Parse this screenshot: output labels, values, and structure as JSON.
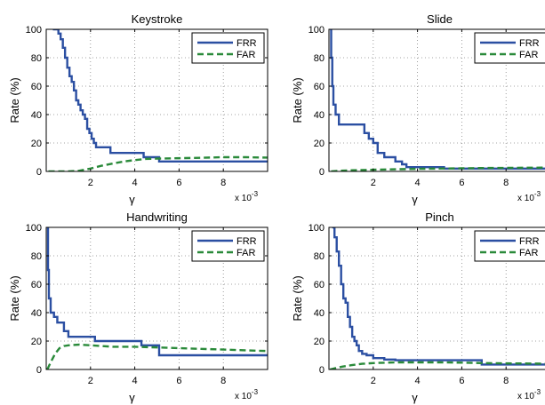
{
  "chart_data": [
    {
      "type": "line",
      "title": "Keystroke",
      "xlabel": "γ",
      "ylabel": "Rate (%)",
      "x_multiplier_label": "x 10",
      "x_multiplier_exp": "-3",
      "xlim": [
        0,
        10
      ],
      "ylim": [
        0,
        100
      ],
      "xticks": [
        2,
        4,
        6,
        8
      ],
      "yticks": [
        0,
        20,
        40,
        60,
        80,
        100
      ],
      "grid": true,
      "legend_position": "top-right",
      "series": [
        {
          "name": "FRR",
          "style": "solid",
          "color": "#2b4fa2",
          "x": [
            0.3,
            0.55,
            0.55,
            0.65,
            0.65,
            0.75,
            0.75,
            0.85,
            0.85,
            0.95,
            0.95,
            1.05,
            1.05,
            1.15,
            1.15,
            1.25,
            1.25,
            1.35,
            1.35,
            1.45,
            1.45,
            1.55,
            1.55,
            1.65,
            1.65,
            1.75,
            1.75,
            1.85,
            1.85,
            1.95,
            1.95,
            2.05,
            2.05,
            2.15,
            2.15,
            2.25,
            2.25,
            2.45,
            2.45,
            2.9,
            2.9,
            3.8,
            3.8,
            4.4,
            4.4,
            5.1,
            5.1,
            10
          ],
          "y": [
            100,
            100,
            97,
            97,
            93,
            93,
            87,
            87,
            80,
            80,
            73,
            73,
            67,
            67,
            63,
            63,
            57,
            57,
            50,
            50,
            47,
            47,
            43,
            43,
            40,
            40,
            37,
            37,
            30,
            30,
            27,
            27,
            23,
            23,
            20,
            20,
            17,
            17,
            17,
            17,
            13,
            13,
            13,
            13,
            10,
            10,
            7,
            7
          ]
        },
        {
          "name": "FAR",
          "style": "dashed",
          "color": "#2a8a3a",
          "x": [
            0.1,
            1.0,
            1.5,
            2.0,
            2.5,
            3.0,
            3.5,
            4.0,
            4.5,
            5.0,
            6.0,
            7.0,
            8.0,
            9.0,
            10.0
          ],
          "y": [
            0,
            0,
            0.5,
            2,
            4,
            5.5,
            7,
            8,
            8.8,
            9,
            9.3,
            9.6,
            10,
            10,
            9.7
          ]
        }
      ]
    },
    {
      "type": "line",
      "title": "Slide",
      "xlabel": "γ",
      "ylabel": "Rate (%)",
      "x_multiplier_label": "x 10",
      "x_multiplier_exp": "-3",
      "xlim": [
        0,
        10
      ],
      "ylim": [
        0,
        100
      ],
      "xticks": [
        2,
        4,
        6,
        8
      ],
      "yticks": [
        0,
        20,
        40,
        60,
        80,
        100
      ],
      "grid": true,
      "legend_position": "top-right",
      "series": [
        {
          "name": "FRR",
          "style": "solid",
          "color": "#2b4fa2",
          "x": [
            0.05,
            0.1,
            0.1,
            0.15,
            0.15,
            0.2,
            0.2,
            0.3,
            0.3,
            0.45,
            0.45,
            1.6,
            1.6,
            1.8,
            1.8,
            2.0,
            2.0,
            2.2,
            2.2,
            2.5,
            2.5,
            3.0,
            3.0,
            3.3,
            3.3,
            3.5,
            3.5,
            5.2,
            5.2,
            10
          ],
          "y": [
            100,
            100,
            80,
            80,
            60,
            60,
            47,
            47,
            40,
            40,
            33,
            33,
            27,
            27,
            23,
            23,
            20,
            20,
            13,
            13,
            10,
            10,
            7,
            7,
            5,
            5,
            3,
            3,
            2,
            2
          ]
        },
        {
          "name": "FAR",
          "style": "dashed",
          "color": "#2a8a3a",
          "x": [
            0.1,
            0.5,
            1.0,
            2.0,
            3.0,
            4.0,
            5.0,
            6.0,
            7.0,
            8.0,
            9.0,
            10.0
          ],
          "y": [
            0,
            0.5,
            0.8,
            1.2,
            1.5,
            1.8,
            2.0,
            2.2,
            2.4,
            2.5,
            2.6,
            2.7
          ]
        }
      ]
    },
    {
      "type": "line",
      "title": "Handwriting",
      "xlabel": "γ",
      "ylabel": "Rate (%)",
      "x_multiplier_label": "x 10",
      "x_multiplier_exp": "-3",
      "xlim": [
        0,
        10
      ],
      "ylim": [
        0,
        100
      ],
      "xticks": [
        2,
        4,
        6,
        8
      ],
      "yticks": [
        0,
        20,
        40,
        60,
        80,
        100
      ],
      "grid": true,
      "legend_position": "top-right",
      "series": [
        {
          "name": "FRR",
          "style": "solid",
          "color": "#2b4fa2",
          "x": [
            0.05,
            0.08,
            0.08,
            0.12,
            0.12,
            0.2,
            0.2,
            0.35,
            0.35,
            0.5,
            0.5,
            0.8,
            0.8,
            1.0,
            1.0,
            2.2,
            2.2,
            4.3,
            4.3,
            5.1,
            5.1,
            10
          ],
          "y": [
            100,
            100,
            70,
            70,
            50,
            50,
            40,
            40,
            37,
            37,
            33,
            33,
            27,
            27,
            23,
            23,
            20,
            20,
            17,
            17,
            10,
            10
          ]
        },
        {
          "name": "FAR",
          "style": "dashed",
          "color": "#2a8a3a",
          "x": [
            0.05,
            0.2,
            0.4,
            0.6,
            0.8,
            1.0,
            1.5,
            2.0,
            3.0,
            4.0,
            5.0,
            6.0,
            7.0,
            8.0,
            9.0,
            10.0
          ],
          "y": [
            0,
            5,
            11,
            15,
            16.5,
            17,
            17.5,
            17,
            16,
            16,
            15.5,
            15,
            14.5,
            14,
            13.5,
            13
          ]
        }
      ]
    },
    {
      "type": "line",
      "title": "Pinch",
      "xlabel": "γ",
      "ylabel": "Rate (%)",
      "x_multiplier_label": "x 10",
      "x_multiplier_exp": "-3",
      "xlim": [
        0,
        10
      ],
      "ylim": [
        0,
        100
      ],
      "xticks": [
        2,
        4,
        6,
        8
      ],
      "yticks": [
        0,
        20,
        40,
        60,
        80,
        100
      ],
      "grid": true,
      "legend_position": "top-right",
      "series": [
        {
          "name": "FRR",
          "style": "solid",
          "color": "#2b4fa2",
          "x": [
            0.15,
            0.25,
            0.25,
            0.35,
            0.35,
            0.45,
            0.45,
            0.55,
            0.55,
            0.65,
            0.65,
            0.75,
            0.75,
            0.85,
            0.85,
            0.95,
            0.95,
            1.05,
            1.05,
            1.15,
            1.15,
            1.25,
            1.25,
            1.35,
            1.35,
            1.5,
            1.5,
            1.7,
            1.7,
            2.0,
            2.0,
            2.5,
            2.5,
            3.0,
            3.0,
            6.9,
            6.9,
            10
          ],
          "y": [
            100,
            100,
            93,
            93,
            83,
            83,
            73,
            73,
            60,
            60,
            50,
            50,
            47,
            47,
            37,
            37,
            30,
            30,
            23,
            23,
            20,
            20,
            17,
            17,
            13,
            13,
            11,
            11,
            10,
            10,
            8,
            8,
            7,
            7,
            6.5,
            6.5,
            3.5,
            3.5
          ]
        },
        {
          "name": "FAR",
          "style": "dashed",
          "color": "#2a8a3a",
          "x": [
            0.05,
            0.3,
            0.6,
            1.0,
            1.5,
            2.0,
            3.0,
            4.0,
            5.0,
            6.0,
            7.0,
            8.0,
            9.0,
            10.0
          ],
          "y": [
            0,
            1,
            2,
            3,
            4,
            4.5,
            5,
            5,
            5,
            4.8,
            4.5,
            4.3,
            4.2,
            4.0
          ]
        }
      ]
    }
  ]
}
